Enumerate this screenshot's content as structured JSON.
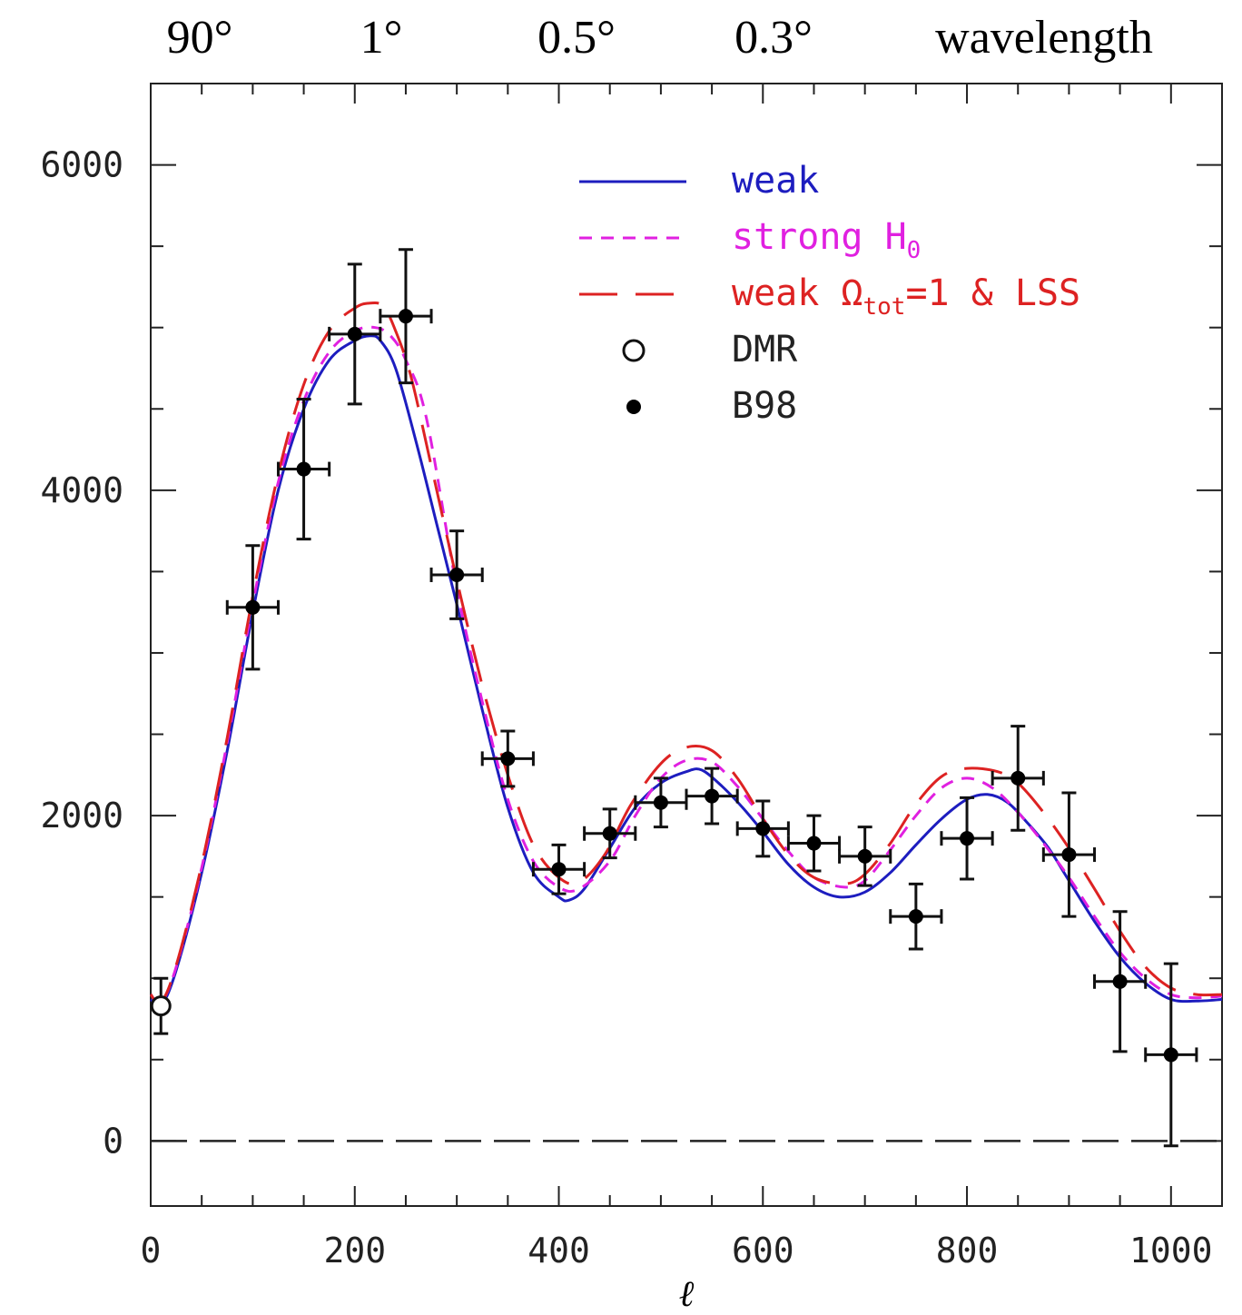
{
  "chart_data": {
    "type": "line",
    "title": "",
    "xlabel": "ℓ",
    "ylabel": "",
    "xlim": [
      0,
      1050
    ],
    "ylim": [
      -400,
      6500
    ],
    "x_ticks": [
      0,
      200,
      400,
      600,
      800,
      1000
    ],
    "y_ticks": [
      0,
      2000,
      4000,
      6000
    ],
    "top_axis_labels": [
      "90°",
      "1°",
      "0.5°",
      "0.3°",
      "wavelength"
    ],
    "grid": false,
    "legend_position": "top-right",
    "zero_line": {
      "y": 0,
      "style": "dashed"
    },
    "series": [
      {
        "name": "weak",
        "kind": "curve",
        "color": "#1d1dbf",
        "dash": "solid",
        "x": [
          0,
          10,
          25,
          50,
          75,
          100,
          125,
          150,
          175,
          200,
          215,
          225,
          240,
          260,
          280,
          300,
          325,
          350,
          375,
          400,
          410,
          425,
          450,
          475,
          500,
          525,
          540,
          560,
          580,
          600,
          625,
          650,
          675,
          700,
          725,
          750,
          775,
          800,
          820,
          840,
          860,
          880,
          900,
          925,
          950,
          975,
          1000,
          1025,
          1050
        ],
        "y": [
          870,
          830,
          1050,
          1650,
          2400,
          3250,
          4000,
          4500,
          4800,
          4920,
          4950,
          4920,
          4750,
          4300,
          3800,
          3300,
          2650,
          2050,
          1650,
          1500,
          1480,
          1550,
          1800,
          2050,
          2200,
          2270,
          2280,
          2180,
          2050,
          1900,
          1700,
          1560,
          1500,
          1530,
          1650,
          1820,
          1980,
          2100,
          2130,
          2080,
          1950,
          1800,
          1600,
          1350,
          1130,
          970,
          870,
          860,
          870
        ]
      },
      {
        "name": "strong H0",
        "kind": "curve",
        "color": "#e020e0",
        "dash": "short",
        "x": [
          0,
          10,
          25,
          50,
          75,
          100,
          125,
          150,
          175,
          200,
          220,
          235,
          250,
          270,
          300,
          325,
          350,
          375,
          400,
          420,
          450,
          475,
          500,
          525,
          550,
          575,
          600,
          625,
          650,
          680,
          700,
          725,
          750,
          775,
          800,
          825,
          850,
          875,
          900,
          925,
          950,
          975,
          1000,
          1025,
          1050
        ],
        "y": [
          900,
          850,
          1070,
          1680,
          2450,
          3300,
          4050,
          4550,
          4850,
          4980,
          5000,
          4950,
          4800,
          4450,
          3400,
          2700,
          2100,
          1720,
          1560,
          1550,
          1720,
          2000,
          2230,
          2340,
          2330,
          2180,
          1980,
          1780,
          1620,
          1560,
          1600,
          1790,
          2000,
          2170,
          2230,
          2170,
          2020,
          1830,
          1620,
          1380,
          1160,
          1000,
          900,
          880,
          890
        ]
      },
      {
        "name": "weak Ω_tot=1 & LSS",
        "kind": "curve",
        "color": "#dd2222",
        "dash": "long",
        "x": [
          0,
          10,
          25,
          50,
          75,
          100,
          125,
          150,
          175,
          200,
          215,
          228,
          240,
          255,
          275,
          300,
          325,
          350,
          375,
          400,
          420,
          445,
          470,
          500,
          525,
          550,
          575,
          600,
          625,
          650,
          680,
          700,
          725,
          750,
          775,
          800,
          830,
          850,
          875,
          900,
          925,
          950,
          975,
          1000,
          1025,
          1050
        ],
        "y": [
          900,
          850,
          1080,
          1700,
          2480,
          3350,
          4100,
          4650,
          4980,
          5120,
          5150,
          5130,
          4980,
          4700,
          4150,
          3450,
          2800,
          2250,
          1820,
          1620,
          1590,
          1760,
          2060,
          2320,
          2420,
          2400,
          2230,
          1980,
          1760,
          1620,
          1580,
          1640,
          1830,
          2070,
          2240,
          2290,
          2270,
          2200,
          2020,
          1800,
          1550,
          1290,
          1070,
          940,
          900,
          900
        ]
      }
    ],
    "data_points": [
      {
        "name": "DMR",
        "marker": "open-circle",
        "points": [
          {
            "x": 10,
            "y": 830,
            "yerr": 170,
            "xerr": 0
          }
        ]
      },
      {
        "name": "B98",
        "marker": "filled-circle",
        "points": [
          {
            "x": 100,
            "y": 3280,
            "yerr": 380,
            "xerr": 25
          },
          {
            "x": 150,
            "y": 4130,
            "yerr": 430,
            "xerr": 25
          },
          {
            "x": 200,
            "y": 4960,
            "yerr": 430,
            "xerr": 25
          },
          {
            "x": 250,
            "y": 5070,
            "yerr": 410,
            "xerr": 25
          },
          {
            "x": 300,
            "y": 3480,
            "yerr": 270,
            "xerr": 25
          },
          {
            "x": 350,
            "y": 2350,
            "yerr": 170,
            "xerr": 25
          },
          {
            "x": 400,
            "y": 1670,
            "yerr": 150,
            "xerr": 25
          },
          {
            "x": 450,
            "y": 1890,
            "yerr": 150,
            "xerr": 25
          },
          {
            "x": 500,
            "y": 2080,
            "yerr": 150,
            "xerr": 25
          },
          {
            "x": 550,
            "y": 2120,
            "yerr": 170,
            "xerr": 25
          },
          {
            "x": 600,
            "y": 1920,
            "yerr": 170,
            "xerr": 25
          },
          {
            "x": 650,
            "y": 1830,
            "yerr": 170,
            "xerr": 25
          },
          {
            "x": 700,
            "y": 1750,
            "yerr": 180,
            "xerr": 25
          },
          {
            "x": 750,
            "y": 1380,
            "yerr": 200,
            "xerr": 25
          },
          {
            "x": 800,
            "y": 1860,
            "yerr": 250,
            "xerr": 25
          },
          {
            "x": 850,
            "y": 2230,
            "yerr": 320,
            "xerr": 25
          },
          {
            "x": 900,
            "y": 1760,
            "yerr": 380,
            "xerr": 25
          },
          {
            "x": 950,
            "y": 980,
            "yerr": 430,
            "xerr": 25
          },
          {
            "x": 1000,
            "y": 530,
            "yerr": 560,
            "xerr": 25
          }
        ]
      }
    ]
  },
  "legend": {
    "items": [
      {
        "label": "weak",
        "sub": "",
        "tail": "",
        "color": "#1d1dbf",
        "symbol": "solid"
      },
      {
        "label": "strong H",
        "sub": "0",
        "tail": "",
        "color": "#e020e0",
        "symbol": "short-dash"
      },
      {
        "label": "weak Ω",
        "sub": "tot",
        "tail": "=1 & LSS",
        "color": "#dd2222",
        "symbol": "long-dash"
      },
      {
        "label": "DMR",
        "sub": "",
        "tail": "",
        "color": "#222222",
        "symbol": "open-circle"
      },
      {
        "label": "B98",
        "sub": "",
        "tail": "",
        "color": "#222222",
        "symbol": "filled-circle"
      }
    ]
  }
}
